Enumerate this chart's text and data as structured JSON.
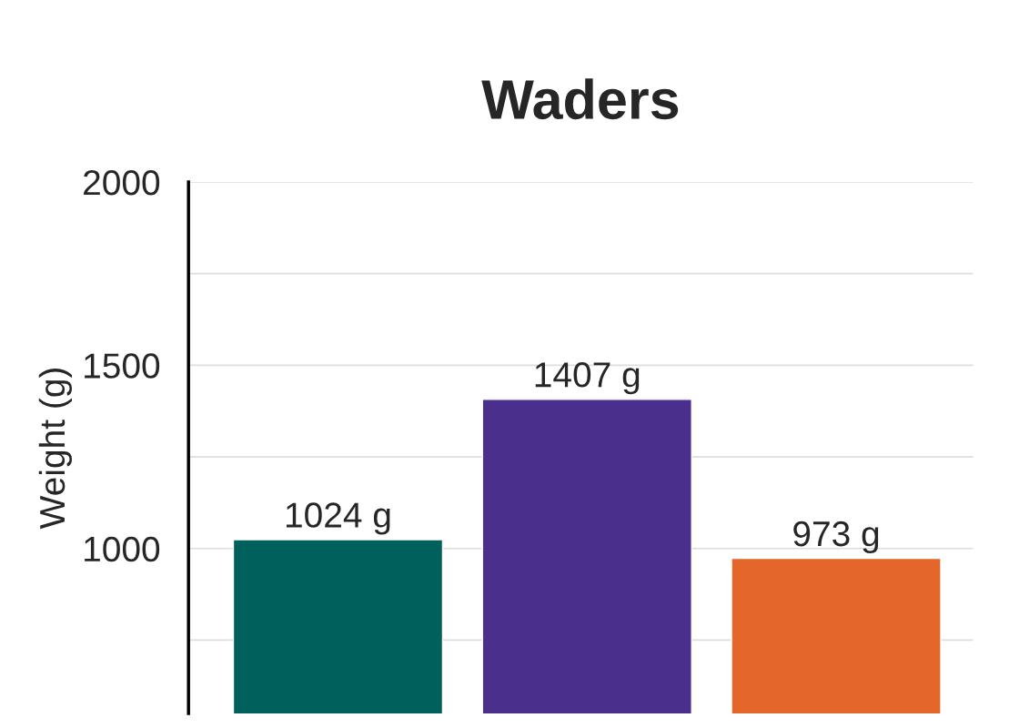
{
  "chart_data": {
    "type": "bar",
    "title": "Waders",
    "ylabel": "Weight (g)",
    "categories": [
      null,
      null,
      null
    ],
    "values": [
      1024,
      1407,
      973
    ],
    "colors": [
      "#00605c",
      "#4a2f8c",
      "#e4662a"
    ],
    "value_labels": [
      "1024 g",
      "1407 g",
      "973 g"
    ],
    "ylim": [
      550,
      2000
    ],
    "yticks": [
      {
        "value": 750,
        "label": null
      },
      1000,
      {
        "value": 1250,
        "label": null
      },
      1500,
      {
        "value": 1750,
        "label": null
      },
      2000
    ],
    "grid": "y"
  }
}
